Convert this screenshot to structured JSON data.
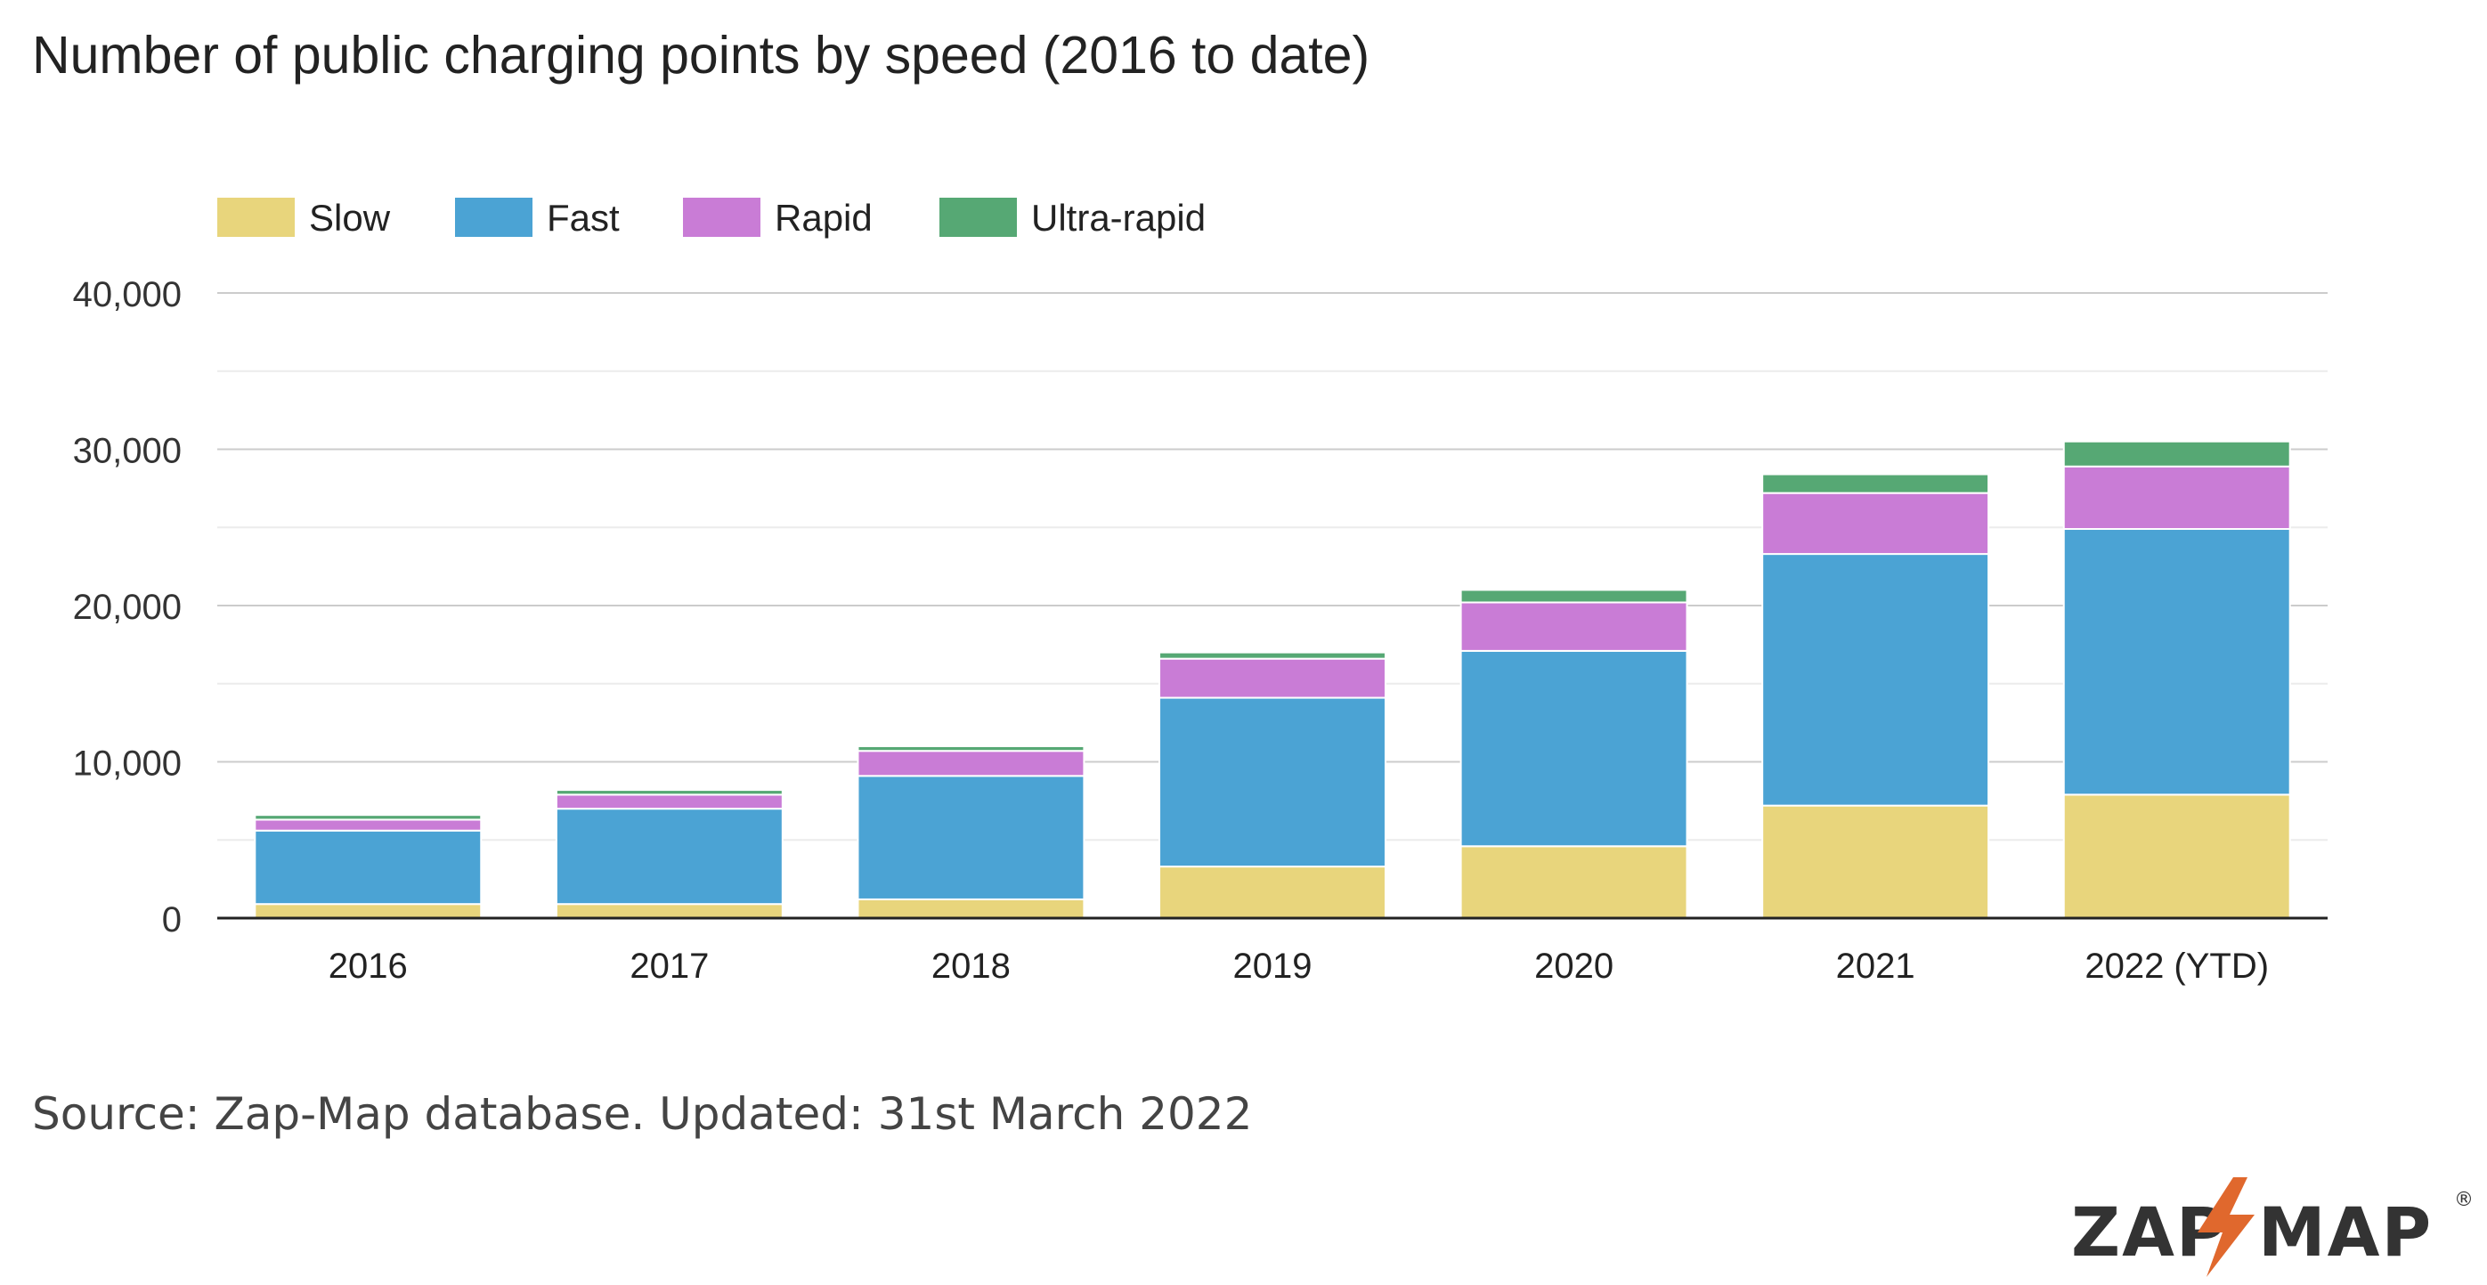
{
  "chart_data": {
    "type": "bar",
    "stacked": true,
    "title": "Number of public charging points by speed (2016 to date)",
    "xlabel": "",
    "ylabel": "",
    "categories": [
      "2016",
      "2017",
      "2018",
      "2019",
      "2020",
      "2021",
      "2022 (YTD)"
    ],
    "series": [
      {
        "name": "Slow",
        "color": "#e8d57c",
        "values": [
          900,
          900,
          1200,
          3300,
          4600,
          7200,
          7900
        ]
      },
      {
        "name": "Fast",
        "color": "#4ba3d4",
        "values": [
          4700,
          6100,
          7900,
          10800,
          12500,
          16100,
          17000
        ]
      },
      {
        "name": "Rapid",
        "color": "#c97cd6",
        "values": [
          700,
          900,
          1600,
          2500,
          3100,
          3900,
          4000
        ]
      },
      {
        "name": "Ultra-rapid",
        "color": "#56a874",
        "values": [
          300,
          300,
          300,
          400,
          800,
          1200,
          1600
        ]
      }
    ],
    "ylim": [
      0,
      40000
    ],
    "yticks": [
      0,
      10000,
      20000,
      30000,
      40000
    ],
    "ytick_labels": [
      "0",
      "10,000",
      "20,000",
      "30,000",
      "40,000"
    ],
    "grid": true,
    "legend_position": "top-left"
  },
  "source_text": "Source: Zap-Map database. Updated: 31st March 2022",
  "logo": {
    "left_text": "ZAP",
    "right_text": "MAP",
    "mark": "®",
    "icon": "lightning-bolt-icon",
    "brand_color": "#333333",
    "accent_color": "#e0682d"
  }
}
